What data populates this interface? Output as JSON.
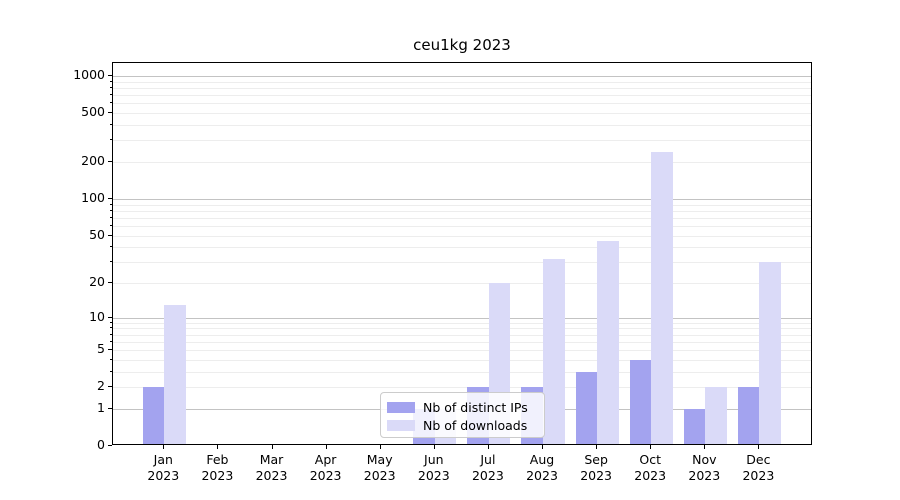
{
  "title": "ceu1kg 2023",
  "legend": {
    "items": [
      {
        "label": "Nb of distinct IPs",
        "color": "#a3a3ef"
      },
      {
        "label": "Nb of downloads",
        "color": "#dadaf8"
      }
    ]
  },
  "chart_data": {
    "type": "bar",
    "title": "ceu1kg 2023",
    "categories": [
      "Jan 2023",
      "Feb 2023",
      "Mar 2023",
      "Apr 2023",
      "May 2023",
      "Jun 2023",
      "Jul 2023",
      "Aug 2023",
      "Sep 2023",
      "Oct 2023",
      "Nov 2023",
      "Dec 2023"
    ],
    "series": [
      {
        "name": "Nb of distinct IPs",
        "color": "#a3a3ef",
        "values": [
          2,
          0,
          0,
          0,
          0,
          1,
          2,
          2,
          3,
          4,
          1,
          2
        ]
      },
      {
        "name": "Nb of downloads",
        "color": "#dadaf8",
        "values": [
          13,
          0,
          0,
          0,
          0,
          1,
          20,
          32,
          45,
          240,
          2,
          30
        ]
      }
    ],
    "y_scale": "log10(1+v)",
    "y_ticks": [
      0,
      1,
      2,
      5,
      10,
      20,
      50,
      100,
      200,
      500,
      1000
    ],
    "y_minor_ticks": [
      2,
      3,
      4,
      5,
      6,
      7,
      8,
      9,
      20,
      30,
      40,
      50,
      60,
      70,
      80,
      90,
      200,
      300,
      400,
      500,
      600,
      700,
      800,
      900
    ],
    "ylim": [
      0,
      1300
    ],
    "grid": "horizontal major+minor",
    "legend_position": "lower center",
    "colors": {
      "major_grid": "#c3c3c3",
      "minor_grid": "#ededed",
      "axis": "#000000"
    }
  }
}
